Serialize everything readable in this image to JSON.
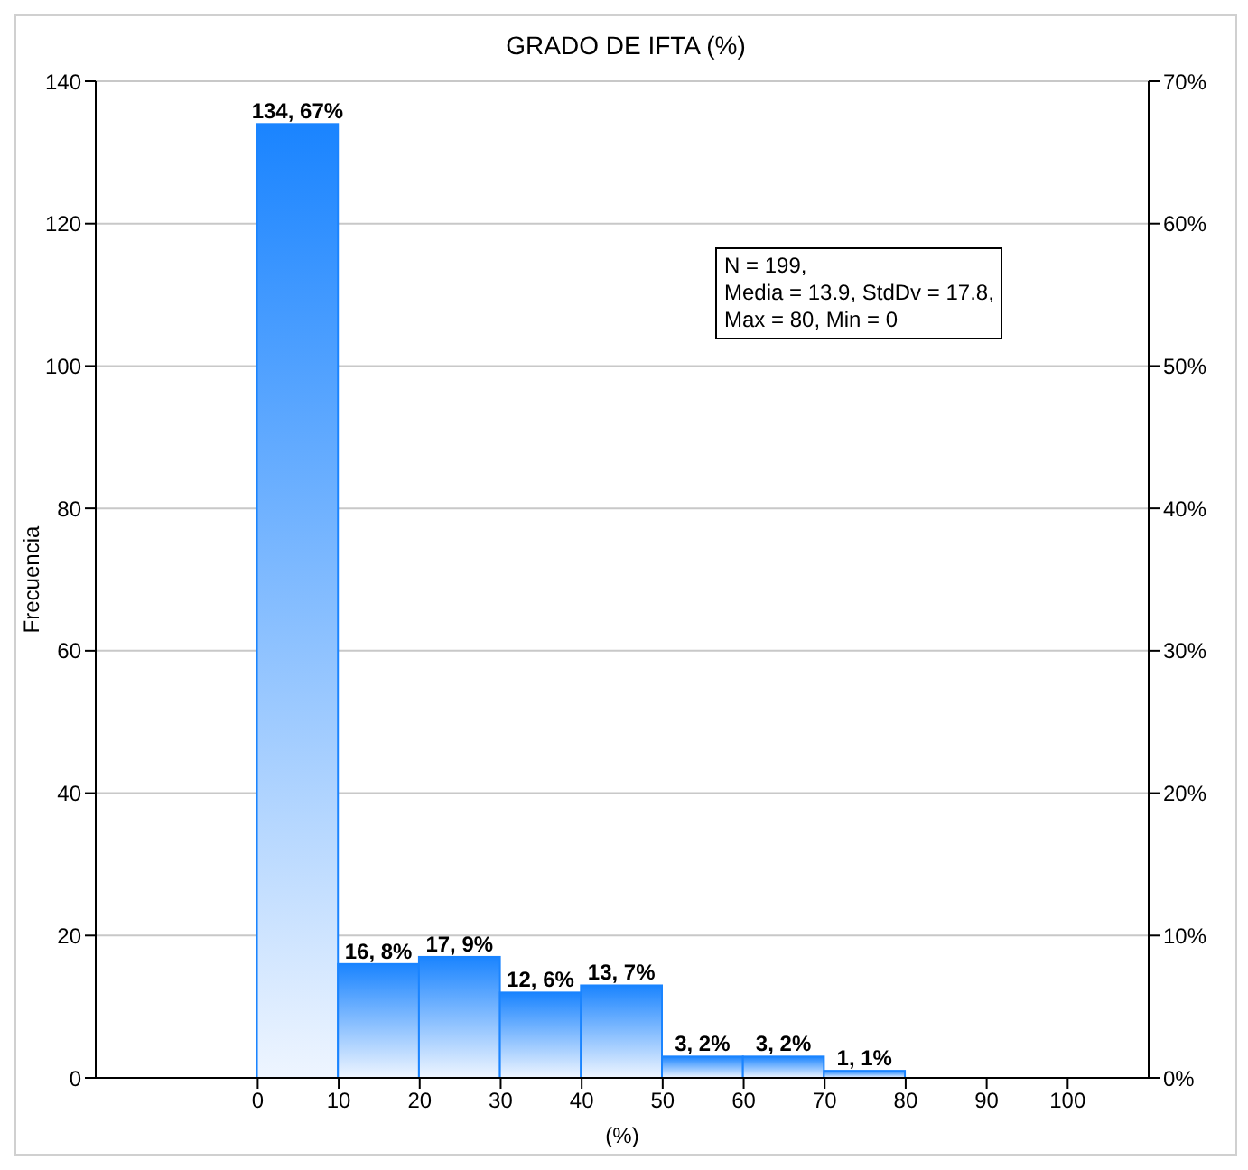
{
  "chart_data": {
    "type": "histogram",
    "title": "GRADO DE IFTA (%)",
    "xlabel": "(%)",
    "ylabel": "Frecuencia",
    "bins": [
      0,
      10,
      20,
      30,
      40,
      50,
      60,
      70,
      80
    ],
    "values": [
      134,
      16,
      17,
      12,
      13,
      3,
      3,
      1
    ],
    "value_labels": [
      "134, 67%",
      "16, 8%",
      "17, 9%",
      "12, 6%",
      "13, 7%",
      "3, 2%",
      "3, 2%",
      "1, 1%"
    ],
    "color": "#1a84ff",
    "xlim": [
      -20,
      110
    ],
    "xticks": [
      0,
      10,
      20,
      30,
      40,
      50,
      60,
      70,
      80,
      90,
      100
    ],
    "ylim": [
      0,
      140
    ],
    "yticks": [
      0,
      20,
      40,
      60,
      80,
      100,
      120,
      140
    ],
    "y2lim": [
      0,
      70
    ],
    "y2ticks": [
      {
        "value": 0,
        "label": "0%"
      },
      {
        "value": 10,
        "label": "10%"
      },
      {
        "value": 20,
        "label": "20%"
      },
      {
        "value": 30,
        "label": "30%"
      },
      {
        "value": 40,
        "label": "40%"
      },
      {
        "value": 50,
        "label": "50%"
      },
      {
        "value": 60,
        "label": "60%"
      },
      {
        "value": 70,
        "label": "70%"
      }
    ],
    "grid": "y",
    "annotations": [
      "N = 199,\nMedia = 13.9, StdDv = 17.8,\nMax = 80, Min = 0"
    ]
  }
}
